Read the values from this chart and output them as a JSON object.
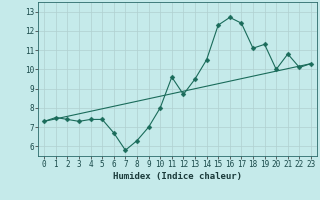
{
  "xlabel": "Humidex (Indice chaleur)",
  "xlim": [
    -0.5,
    23.5
  ],
  "ylim": [
    5.5,
    13.5
  ],
  "xticks": [
    0,
    1,
    2,
    3,
    4,
    5,
    6,
    7,
    8,
    9,
    10,
    11,
    12,
    13,
    14,
    15,
    16,
    17,
    18,
    19,
    20,
    21,
    22,
    23
  ],
  "yticks": [
    6,
    7,
    8,
    9,
    10,
    11,
    12,
    13
  ],
  "bg_color": "#c5eaea",
  "grid_color": "#b0d0d0",
  "line_color": "#1a6b5a",
  "curve1_x": [
    0,
    1,
    2,
    3,
    4,
    5,
    6,
    7,
    8,
    9,
    10,
    11,
    12,
    13,
    14,
    15,
    16,
    17,
    18,
    19,
    20,
    21,
    22,
    23
  ],
  "curve1_y": [
    7.3,
    7.5,
    7.4,
    7.3,
    7.4,
    7.4,
    6.7,
    5.8,
    6.3,
    7.0,
    8.0,
    9.6,
    8.7,
    9.5,
    10.5,
    12.3,
    12.7,
    12.4,
    11.1,
    11.3,
    10.0,
    10.8,
    10.1,
    10.3
  ],
  "curve2_x": [
    0,
    23
  ],
  "curve2_y": [
    7.3,
    10.3
  ],
  "markersize": 2.5,
  "linewidth": 0.8,
  "tick_fontsize": 5.5,
  "xlabel_fontsize": 6.5
}
